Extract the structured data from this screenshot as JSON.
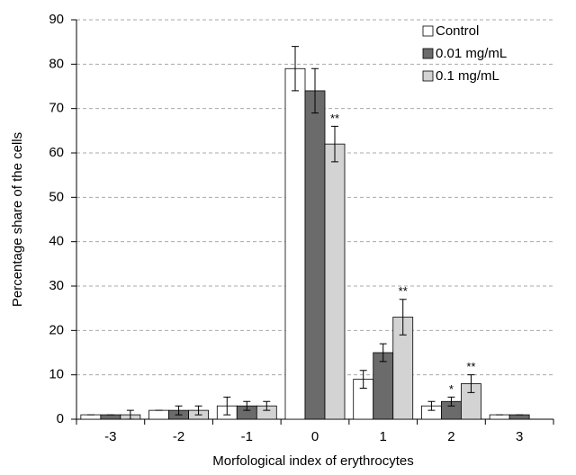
{
  "chart_data": {
    "type": "bar",
    "x_label": "Morfological index of erythrocytes",
    "y_label": "Percentage share of the cells",
    "categories": [
      "-3",
      "-2",
      "-1",
      "0",
      "1",
      "2",
      "3"
    ],
    "series": [
      {
        "name": "Control",
        "color": "#ffffff",
        "values": [
          1,
          2,
          3,
          79,
          9,
          3,
          1
        ],
        "errors": [
          0,
          0,
          2,
          5,
          2,
          1,
          0
        ],
        "significance": [
          null,
          null,
          null,
          null,
          null,
          null,
          null
        ]
      },
      {
        "name": "0.01 mg/mL",
        "color": "#6b6b6b",
        "values": [
          1,
          2,
          3,
          74,
          15,
          4,
          1
        ],
        "errors": [
          0,
          1,
          1,
          5,
          2,
          1,
          0
        ],
        "significance": [
          null,
          null,
          null,
          null,
          null,
          "*",
          null
        ]
      },
      {
        "name": "0.1 mg/mL",
        "color": "#d3d3d3",
        "values": [
          1,
          2,
          3,
          62,
          23,
          8,
          null
        ],
        "errors": [
          1,
          1,
          1,
          4,
          4,
          2,
          null
        ],
        "significance": [
          null,
          null,
          null,
          "**",
          "**",
          "**",
          null
        ]
      }
    ],
    "ylim": [
      0,
      90
    ],
    "yticks": [
      0,
      10,
      20,
      30,
      40,
      50,
      60,
      70,
      80,
      90
    ],
    "grid": true,
    "legend": "top-right"
  }
}
